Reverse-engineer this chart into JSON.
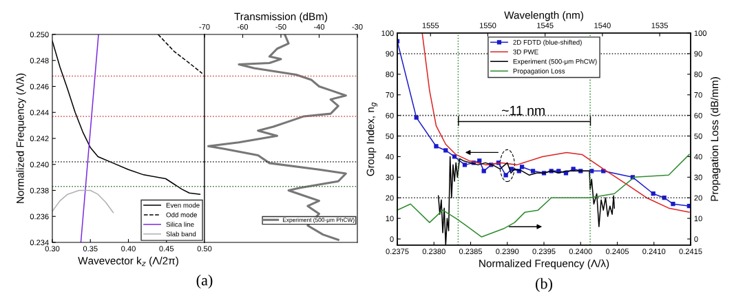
{
  "chart_data": [
    {
      "type": "line",
      "xlabel": "Wavevector k$_{z}$ (Λ/2π)",
      "ylabel": "Normalized Frequency (Λ/λ)",
      "xlim": [
        0.3,
        0.5
      ],
      "xticks": [
        {
          "value": 0.3,
          "label": "0.30"
        },
        0.35,
        {
          "value": 0.4,
          "label": "0.40"
        },
        0.45,
        {
          "value": 0.5,
          "label": "0.50"
        }
      ],
      "ylim": [
        0.234,
        0.25
      ],
      "yticks": [
        0.234,
        0.236,
        0.238,
        {
          "value": 0.24,
          "label": "0.240"
        },
        0.242,
        0.244,
        0.246,
        0.248,
        {
          "value": 0.25,
          "label": "0.250"
        }
      ],
      "legend": "lower right",
      "annotations": [
        "(a)"
      ],
      "ref_lines": [
        {
          "axis": "y",
          "value": 0.2468,
          "color": "#d04040",
          "line_style": "dotted"
        },
        {
          "axis": "y",
          "value": 0.2437,
          "color": "#d04040",
          "line_style": "dotted"
        },
        {
          "axis": "y",
          "value": 0.2402,
          "color": "#222222",
          "line_style": "dotted"
        },
        {
          "axis": "y",
          "value": 0.2383,
          "color": "#2e6b2e",
          "line_style": "dotted"
        }
      ],
      "series": [
        {
          "name": "Even mode",
          "color": "#000000",
          "line_style": "solid",
          "x": [
            0.3,
            0.31,
            0.32,
            0.33,
            0.34,
            0.35,
            0.36,
            0.38,
            0.4,
            0.42,
            0.449,
            0.47,
            0.48,
            0.494
          ],
          "values": [
            0.2495,
            0.2475,
            0.2458,
            0.244,
            0.2425,
            0.2413,
            0.2406,
            0.2401,
            0.2396,
            0.2392,
            0.2389,
            0.2381,
            0.2378,
            0.2377
          ]
        },
        {
          "name": "Odd mode",
          "color": "#000000",
          "line_style": "dashed",
          "x": [
            0.439,
            0.46,
            0.48,
            0.497
          ],
          "values": [
            0.25,
            0.2487,
            0.2478,
            0.247
          ]
        },
        {
          "name": "Silica line",
          "color": "#7a2be0",
          "line_style": "solid",
          "x": [
            0.3375,
            0.3607
          ],
          "values": [
            0.234,
            0.25
          ]
        },
        {
          "name": "Slab band",
          "color": "#b0b0b0",
          "line_style": "solid",
          "x": [
            0.3,
            0.31,
            0.32,
            0.335,
            0.35,
            0.36,
            0.37,
            0.38
          ],
          "values": [
            0.2364,
            0.2372,
            0.2377,
            0.238,
            0.238,
            0.2377,
            0.2371,
            0.2363
          ]
        }
      ]
    },
    {
      "type": "line",
      "xlabel": "Transmission (dBm)",
      "xlim": [
        -70,
        -30
      ],
      "xticks": [
        -70,
        -60,
        -50,
        -40,
        -30
      ],
      "ylim": [
        0.234,
        0.25
      ],
      "tick_labels": "x",
      "legend": "lower right",
      "ref_lines": [
        {
          "axis": "y",
          "value": 0.2468,
          "color": "#d04040",
          "line_style": "dotted"
        },
        {
          "axis": "y",
          "value": 0.2437,
          "color": "#d04040",
          "line_style": "dotted"
        },
        {
          "axis": "y",
          "value": 0.2402,
          "color": "#222222",
          "line_style": "dotted"
        },
        {
          "axis": "y",
          "value": 0.2383,
          "color": "#2e6b2e",
          "line_style": "dotted"
        }
      ],
      "series": [
        {
          "name": "Experiment (500-μm PhCW)",
          "color": "#777777",
          "line_style": "solid",
          "x": [
            -49,
            -48,
            -51,
            -53,
            -50,
            -53,
            -61,
            -57,
            -46,
            -42,
            -40,
            -37,
            -33,
            -37,
            -35,
            -37,
            -44,
            -47,
            -52,
            -56,
            -51,
            -61,
            -69,
            -65,
            -56,
            -53,
            -40,
            -33,
            -35,
            -45,
            -48,
            -43,
            -40,
            -43,
            -40,
            -43,
            -39,
            -35
          ],
          "values": [
            0.25,
            0.2493,
            0.2489,
            0.2483,
            0.2481,
            0.2478,
            0.2477,
            0.2474,
            0.2469,
            0.2465,
            0.246,
            0.2457,
            0.2453,
            0.245,
            0.2445,
            0.2439,
            0.2437,
            0.2434,
            0.2429,
            0.2426,
            0.2422,
            0.2417,
            0.2414,
            0.2412,
            0.2407,
            0.2401,
            0.2396,
            0.2393,
            0.2387,
            0.2382,
            0.238,
            0.2375,
            0.2372,
            0.2368,
            0.2362,
            0.2353,
            0.2346,
            0.2342
          ]
        }
      ]
    },
    {
      "type": "line",
      "xlabel": "Normalized Frequency (Λ/λ)",
      "ylabel": "Group Index, n$_{g}$",
      "y2label": "Propagation Loss (dB/mm)",
      "x2label": "Wavelength (nm)",
      "xlim": [
        0.2375,
        0.2415
      ],
      "xticks": [
        0.2375,
        {
          "value": 0.238,
          "label": "0.2380"
        },
        0.2385,
        {
          "value": 0.239,
          "label": "0.2390"
        },
        0.2395,
        {
          "value": 0.24,
          "label": "0.2400"
        },
        0.2405,
        {
          "value": 0.241,
          "label": "0.2410"
        },
        0.2415
      ],
      "x2lim": [
        1557.9,
        1532.3
      ],
      "x2ticks": [
        1555,
        1550,
        1545,
        1540,
        1535
      ],
      "ylim": [
        -3,
        100
      ],
      "yticks": [
        0,
        10,
        20,
        30,
        40,
        50,
        60,
        70,
        80,
        90,
        100
      ],
      "y2lim": [
        -3,
        100
      ],
      "y2ticks": [
        0,
        10,
        20,
        30,
        40,
        50,
        60,
        70,
        80,
        90,
        100
      ],
      "legend": "upper center",
      "annotations": [
        "~11 nm",
        "(b)"
      ],
      "ref_lines": [
        {
          "axis": "y",
          "value": 20,
          "color": "#222222",
          "line_style": "dotted"
        },
        {
          "axis": "y",
          "value": 50,
          "color": "#222222",
          "line_style": "dotted"
        },
        {
          "axis": "y",
          "value": 60,
          "color": "#222222",
          "line_style": "dotted"
        },
        {
          "axis": "y",
          "value": 90,
          "color": "#222222",
          "line_style": "dotted"
        },
        {
          "axis": "x",
          "value": 0.23833,
          "color": "#2e8b2e",
          "line_style": "dotted"
        },
        {
          "axis": "x",
          "value": 0.24013,
          "color": "#2e8b2e",
          "line_style": "dotted"
        }
      ],
      "series": [
        {
          "name": "2D FDTD (blue-shifted)",
          "color": "#1a1acc",
          "marker": "square",
          "line_style": "solid",
          "x": [
            0.2375,
            0.23776,
            0.23803,
            0.23816,
            0.23828,
            0.23842,
            0.23854,
            0.23862,
            0.23868,
            0.23878,
            0.23888,
            0.23898,
            0.23906,
            0.23916,
            0.2392,
            0.23935,
            0.2395,
            0.2396,
            0.2397,
            0.2398,
            0.2399,
            0.24,
            0.24015,
            0.24031,
            0.24071,
            0.24099,
            0.24114,
            0.24126,
            0.24148
          ],
          "values": [
            96,
            59,
            45,
            43,
            40,
            36,
            37,
            38,
            33,
            36,
            37,
            31,
            34,
            33,
            35,
            33,
            32,
            33,
            33,
            32,
            34,
            33,
            33,
            33,
            30,
            22,
            20,
            17,
            16
          ]
        },
        {
          "name": "3D PWE",
          "color": "#dd2222",
          "line_style": "solid",
          "x": [
            0.23784,
            0.23794,
            0.23803,
            0.23816,
            0.2383,
            0.23848,
            0.23871,
            0.23892,
            0.23913,
            0.23948,
            0.23981,
            0.24002,
            0.24031,
            0.24061,
            0.2409,
            0.2412,
            0.24148
          ],
          "values": [
            100,
            72,
            55,
            46,
            41,
            38,
            36,
            37,
            36,
            40,
            42,
            41,
            34,
            27,
            20,
            15,
            13
          ]
        },
        {
          "name": "Experiment (500-μm PhCW)",
          "color": "#000000",
          "line_style": "solid",
          "x": [
            0.23806,
            0.23808,
            0.2381,
            0.23812,
            0.23814,
            0.23816,
            0.23818,
            0.2382,
            0.23822,
            0.23824,
            0.23826,
            0.23828,
            0.2383,
            0.23832,
            0.23835,
            0.2384,
            0.2385,
            0.2386,
            0.2387,
            0.2388,
            0.2389,
            0.239,
            0.23905,
            0.2391,
            0.2392,
            0.2393,
            0.2394,
            0.2395,
            0.2396,
            0.2397,
            0.2398,
            0.2399,
            0.24,
            0.24012,
            0.24013,
            0.24015,
            0.24018,
            0.24022,
            0.24025,
            0.24028,
            0.24031,
            0.24034,
            0.24037,
            0.2404,
            0.24043,
            0.24045,
            0.24046
          ],
          "values": [
            21,
            12,
            19,
            3,
            15,
            -3,
            10,
            4,
            40,
            20,
            36,
            28,
            37,
            30,
            39,
            38,
            37,
            36,
            37,
            36,
            34,
            37,
            32,
            34,
            33,
            31,
            32,
            32,
            33,
            32,
            33,
            33,
            33,
            33,
            24,
            29,
            17,
            22,
            6,
            19,
            14,
            20,
            11,
            16,
            12,
            21,
            15
          ]
        },
        {
          "color": "#000000",
          "line_style": "solid",
          "x": [
            0.23833,
            0.24013
          ],
          "values": [
            57,
            57
          ]
        },
        {
          "name": "Propagation Loss",
          "color": "#2e8b2e",
          "line_style": "solid",
          "axis": "y2",
          "x": [
            0.2375,
            0.23768,
            0.23794,
            0.23812,
            0.2383,
            0.23842,
            0.23865,
            0.23895,
            0.2391,
            0.23924,
            0.23942,
            0.2396,
            0.23986,
            0.24012,
            0.24046,
            0.24073,
            0.2412,
            0.24148
          ],
          "values": [
            14,
            17,
            8,
            14,
            10,
            7,
            1,
            5,
            8,
            13,
            14,
            20,
            20,
            20,
            22,
            30,
            31,
            41
          ]
        }
      ]
    }
  ]
}
